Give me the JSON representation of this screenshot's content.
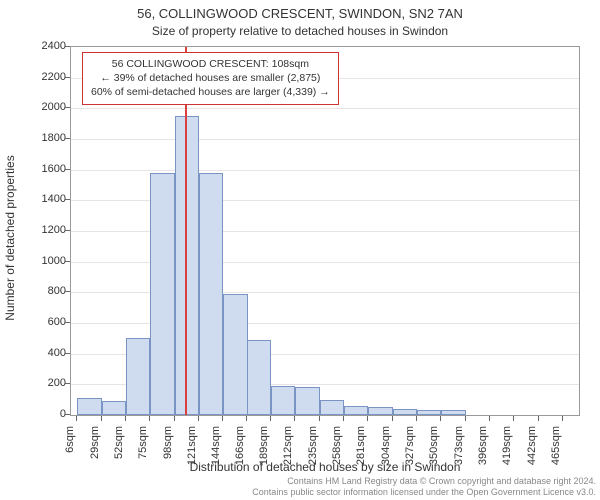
{
  "title": "56, COLLINGWOOD CRESCENT, SWINDON, SN2 7AN",
  "subtitle": "Size of property relative to detached houses in Swindon",
  "y_axis": {
    "title": "Number of detached properties",
    "min": 0,
    "max": 2400,
    "tick_step": 200,
    "ticks": [
      0,
      200,
      400,
      600,
      800,
      1000,
      1200,
      1400,
      1600,
      1800,
      2000,
      2200,
      2400
    ]
  },
  "x_axis": {
    "title": "Distribution of detached houses by size in Swindon",
    "labels": [
      "6sqm",
      "29sqm",
      "52sqm",
      "75sqm",
      "98sqm",
      "121sqm",
      "144sqm",
      "166sqm",
      "189sqm",
      "212sqm",
      "235sqm",
      "258sqm",
      "281sqm",
      "304sqm",
      "327sqm",
      "350sqm",
      "373sqm",
      "396sqm",
      "419sqm",
      "442sqm",
      "465sqm"
    ],
    "bin_starts": [
      6,
      29,
      52,
      75,
      98,
      121,
      144,
      166,
      189,
      212,
      235,
      258,
      281,
      304,
      327,
      350,
      373,
      396,
      419,
      442,
      465
    ],
    "bin_width": 23,
    "domain_min": 0,
    "domain_max": 480
  },
  "bars": {
    "values": [
      110,
      90,
      500,
      1580,
      1950,
      1580,
      790,
      490,
      190,
      180,
      100,
      60,
      55,
      40,
      35,
      30,
      0,
      0,
      0,
      0,
      0
    ],
    "fill_color": "#cfdcef",
    "border_color": "#7a95c4"
  },
  "marker": {
    "value_sqm": 108,
    "color": "#d94040"
  },
  "info_box": {
    "line1": "56 COLLINGWOOD CRESCENT: 108sqm",
    "line2": "← 39% of detached houses are smaller (2,875)",
    "line3": "60% of semi-detached houses are larger (4,339) →",
    "border_color": "#cc3333"
  },
  "footer": {
    "line1": "Contains HM Land Registry data © Crown copyright and database right 2024.",
    "line2": "Contains public sector information licensed under the Open Government Licence v3.0."
  },
  "style": {
    "background_color": "#ffffff",
    "grid_color": "#e5e5e5",
    "axis_color": "#999999",
    "title_fontsize": 13,
    "subtitle_fontsize": 12,
    "axis_label_fontsize": 12,
    "tick_fontsize": 11,
    "footer_fontsize": 9,
    "footer_color": "#888888"
  }
}
